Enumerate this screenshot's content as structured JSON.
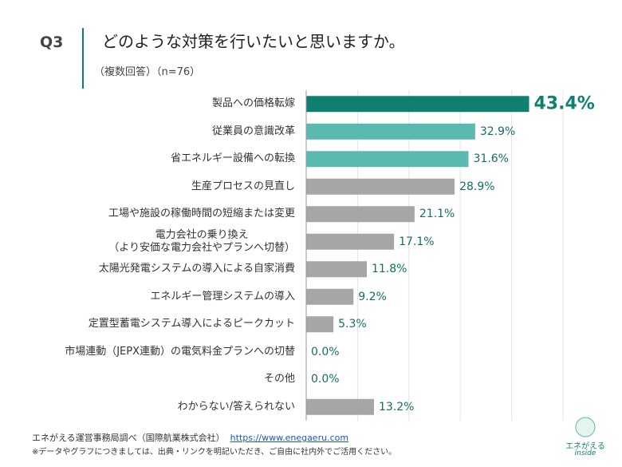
{
  "header": {
    "question": "Q3",
    "title": "どのような対策を行いたいと思いますか。",
    "subtitle": "（複数回答）（n=76）"
  },
  "chart_data": {
    "type": "hbar",
    "categories": [
      "製品への価格転嫁",
      "従業員の意識改革",
      "省エネルギー設備への転換",
      "生産プロセスの見直し",
      "工場や施設の稼働時間の短縮または変更",
      "電力会社の乗り換え\n（より安価な電力会社やプランへ切替）",
      "太陽光発電システムの導入による自家消費",
      "エネルギー管理システムの導入",
      "定置型蓄電システム導入によるピークカット",
      "市場連動（JEPX連動）の電気料金プランへの切替",
      "その他",
      "わからない/答えられない"
    ],
    "values": [
      43.4,
      32.9,
      31.6,
      28.9,
      21.1,
      17.1,
      11.8,
      9.2,
      5.3,
      0.0,
      0.0,
      13.2
    ],
    "value_labels": [
      "43.4%",
      "32.9%",
      "31.6%",
      "28.9%",
      "21.1%",
      "17.1%",
      "11.8%",
      "9.2%",
      "5.3%",
      "0.0%",
      "0.0%",
      "13.2%"
    ],
    "colors": [
      "#0f7f6f",
      "#5bbab0",
      "#5bbab0",
      "#a6a6a6",
      "#a6a6a6",
      "#a6a6a6",
      "#a6a6a6",
      "#a6a6a6",
      "#a6a6a6",
      "#a6a6a6",
      "#a6a6a6",
      "#a6a6a6"
    ],
    "xlim": [
      0,
      50
    ],
    "xticks": [
      0,
      10,
      20,
      30,
      40,
      50
    ],
    "grid": true
  },
  "footer": {
    "source": "エネがえる運営事務局調べ（国際航業株式会社）",
    "link": "https://www.enegaeru.com",
    "note": "※データやグラフにつきましては、出典・リンクを明記いただき、ご自由に社内外でご活用ください。"
  },
  "logo": {
    "name": "エネがえる",
    "sub": "inside"
  }
}
